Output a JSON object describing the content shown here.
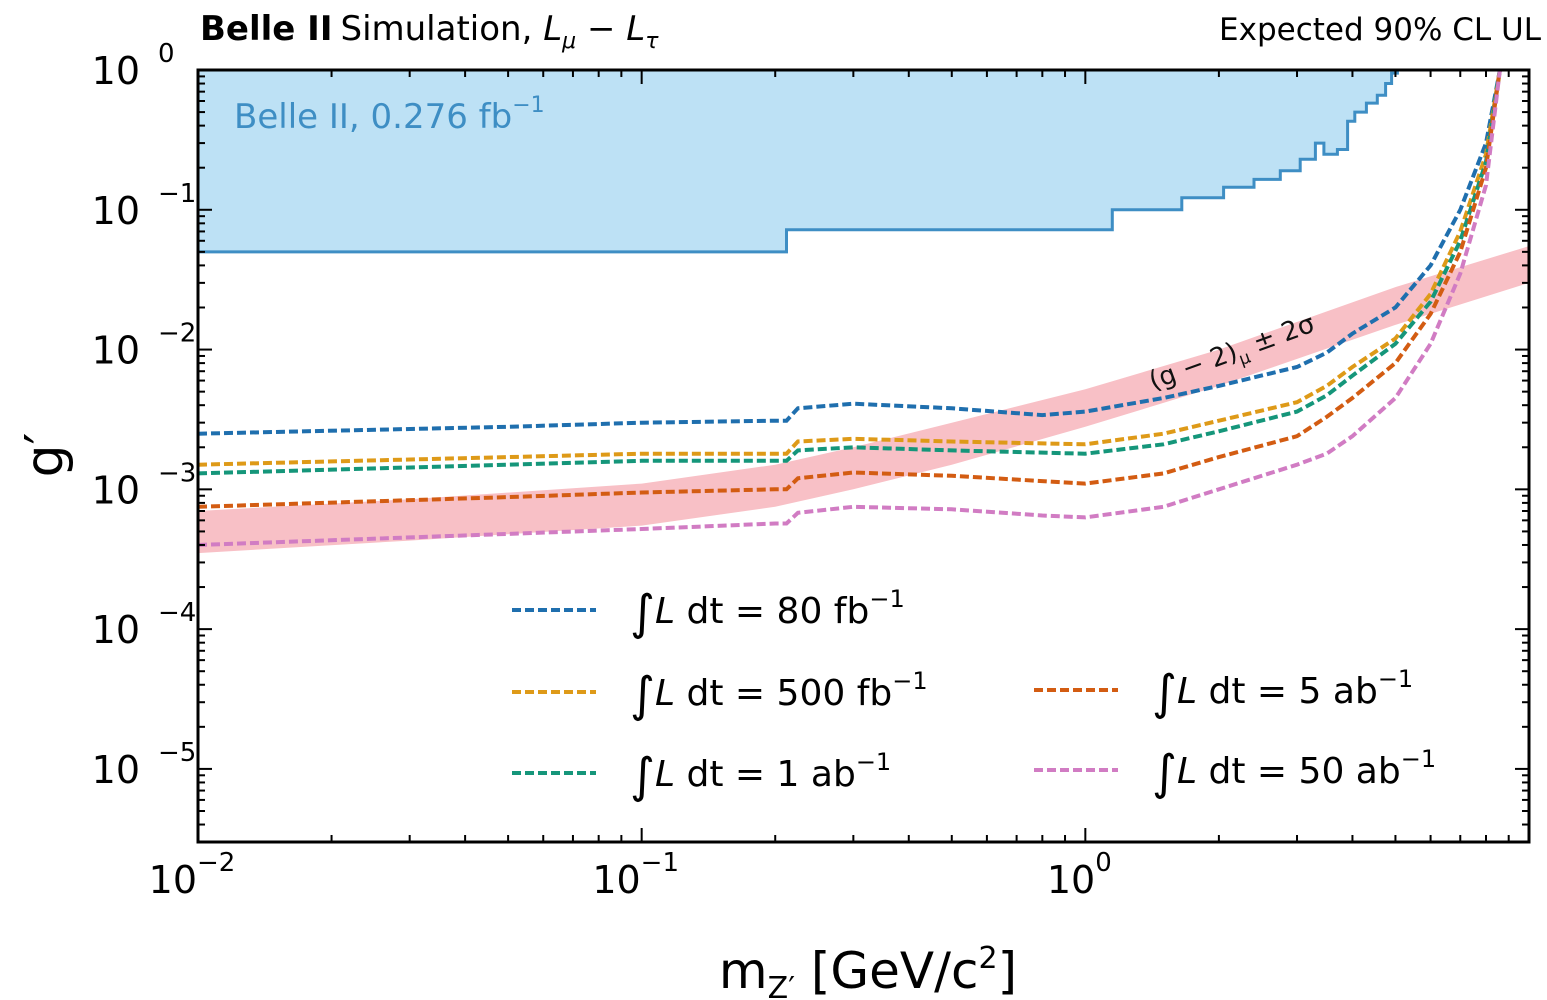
{
  "chart_data": {
    "type": "line",
    "header": {
      "experiment": "Belle II",
      "simulation_text": "Simulation, ",
      "model_a": "L",
      "model_a_sub": "μ",
      "model_op": " − ",
      "model_b": "L",
      "model_b_sub": "τ",
      "right_text": "Expected 90% CL UL"
    },
    "xlabel": {
      "main": "m",
      "sub": "Z′",
      "rest": " [GeV/c",
      "sup": "2",
      "close": "]"
    },
    "ylabel": "g′",
    "xscale": "log",
    "yscale": "log",
    "xlim": [
      0.01,
      10
    ],
    "ylim": [
      3e-06,
      1
    ],
    "x_ticks": [
      {
        "v": 0.01,
        "base": "10",
        "exp": "−2"
      },
      {
        "v": 0.1,
        "base": "10",
        "exp": "−1"
      },
      {
        "v": 1,
        "base": "10",
        "exp": "0"
      }
    ],
    "y_ticks": [
      {
        "v": 1,
        "base": "10",
        "exp": "0"
      },
      {
        "v": 0.1,
        "base": "10",
        "exp": "−1"
      },
      {
        "v": 0.01,
        "base": "10",
        "exp": "−2"
      },
      {
        "v": 0.001,
        "base": "10",
        "exp": "−3"
      },
      {
        "v": 0.0001,
        "base": "10",
        "exp": "−4"
      },
      {
        "v": 1e-05,
        "base": "10",
        "exp": "−5"
      }
    ],
    "excluded_region": {
      "label": "Belle II, 0.276 fb",
      "label_sup": "−1",
      "color_fill": "#bde1f5",
      "color_line": "#3e8ec4",
      "boundary": [
        [
          0.01,
          0.05
        ],
        [
          0.212,
          0.05
        ],
        [
          0.212,
          0.072
        ],
        [
          1.15,
          0.072
        ],
        [
          1.15,
          0.1
        ],
        [
          1.65,
          0.1
        ],
        [
          1.65,
          0.122
        ],
        [
          2.05,
          0.122
        ],
        [
          2.05,
          0.145
        ],
        [
          2.4,
          0.145
        ],
        [
          2.4,
          0.165
        ],
        [
          2.75,
          0.165
        ],
        [
          2.75,
          0.19
        ],
        [
          3.05,
          0.19
        ],
        [
          3.05,
          0.23
        ],
        [
          3.3,
          0.23
        ],
        [
          3.3,
          0.3
        ],
        [
          3.45,
          0.3
        ],
        [
          3.45,
          0.25
        ],
        [
          3.7,
          0.25
        ],
        [
          3.7,
          0.27
        ],
        [
          3.9,
          0.27
        ],
        [
          3.9,
          0.43
        ],
        [
          4.05,
          0.43
        ],
        [
          4.05,
          0.5
        ],
        [
          4.3,
          0.5
        ],
        [
          4.3,
          0.58
        ],
        [
          4.55,
          0.58
        ],
        [
          4.55,
          0.66
        ],
        [
          4.75,
          0.66
        ],
        [
          4.75,
          0.8
        ],
        [
          4.9,
          0.8
        ],
        [
          4.9,
          0.95
        ],
        [
          5.05,
          0.95
        ],
        [
          5.05,
          1.0
        ],
        [
          5.4,
          1.0
        ]
      ]
    },
    "band": {
      "label": "(g − 2)",
      "label_sub": "μ",
      "label_tail": " ± 2σ",
      "color": "#f8c0c6",
      "lower": [
        [
          0.01,
          0.00035
        ],
        [
          0.03,
          0.00043
        ],
        [
          0.1,
          0.00055
        ],
        [
          0.2,
          0.00075
        ],
        [
          0.3,
          0.001
        ],
        [
          0.5,
          0.0015
        ],
        [
          1,
          0.0028
        ],
        [
          2,
          0.0055
        ],
        [
          5,
          0.015
        ],
        [
          10,
          0.03
        ]
      ],
      "upper": [
        [
          0.01,
          0.0007
        ],
        [
          0.03,
          0.00085
        ],
        [
          0.1,
          0.0011
        ],
        [
          0.2,
          0.0015
        ],
        [
          0.3,
          0.002
        ],
        [
          0.5,
          0.003
        ],
        [
          1,
          0.0052
        ],
        [
          2,
          0.01
        ],
        [
          5,
          0.028
        ],
        [
          10,
          0.055
        ]
      ]
    },
    "series": [
      {
        "name_int": "∫",
        "name_l": "L",
        "name_mid": " dt  =  80 fb",
        "name_sup": "−1",
        "color": "#1f6fae",
        "points": [
          [
            0.01,
            0.0025
          ],
          [
            0.05,
            0.0028
          ],
          [
            0.1,
            0.003
          ],
          [
            0.2,
            0.0031
          ],
          [
            0.212,
            0.0031
          ],
          [
            0.225,
            0.0038
          ],
          [
            0.3,
            0.0041
          ],
          [
            0.5,
            0.0038
          ],
          [
            0.8,
            0.0034
          ],
          [
            1.0,
            0.0036
          ],
          [
            1.5,
            0.0045
          ],
          [
            2.0,
            0.0055
          ],
          [
            3.0,
            0.0075
          ],
          [
            3.5,
            0.0095
          ],
          [
            4.0,
            0.013
          ],
          [
            5.0,
            0.02
          ],
          [
            6.0,
            0.04
          ],
          [
            7.0,
            0.1
          ],
          [
            8.0,
            0.3
          ],
          [
            8.6,
            1.0
          ]
        ]
      },
      {
        "name_int": "∫",
        "name_l": "L",
        "name_mid": " dt  =  500 fb",
        "name_sup": "−1",
        "color": "#de9a18",
        "points": [
          [
            0.01,
            0.0015
          ],
          [
            0.05,
            0.0017
          ],
          [
            0.1,
            0.0018
          ],
          [
            0.2,
            0.0018
          ],
          [
            0.212,
            0.0018
          ],
          [
            0.225,
            0.0022
          ],
          [
            0.3,
            0.0023
          ],
          [
            0.5,
            0.0022
          ],
          [
            1.0,
            0.0021
          ],
          [
            1.5,
            0.0025
          ],
          [
            2.0,
            0.0031
          ],
          [
            3.0,
            0.0042
          ],
          [
            3.5,
            0.0055
          ],
          [
            4.0,
            0.0075
          ],
          [
            5.0,
            0.012
          ],
          [
            6.0,
            0.025
          ],
          [
            7.0,
            0.07
          ],
          [
            8.0,
            0.25
          ],
          [
            8.6,
            1.0
          ]
        ]
      },
      {
        "name_int": "∫",
        "name_l": "L",
        "name_mid": " dt  =  1 ab",
        "name_sup": "−1",
        "color": "#15967a",
        "points": [
          [
            0.01,
            0.0013
          ],
          [
            0.05,
            0.0015
          ],
          [
            0.1,
            0.0016
          ],
          [
            0.2,
            0.0016
          ],
          [
            0.212,
            0.0016
          ],
          [
            0.225,
            0.0019
          ],
          [
            0.3,
            0.002
          ],
          [
            0.5,
            0.0019
          ],
          [
            1.0,
            0.0018
          ],
          [
            1.5,
            0.0021
          ],
          [
            2.0,
            0.0026
          ],
          [
            3.0,
            0.0036
          ],
          [
            3.5,
            0.0047
          ],
          [
            4.0,
            0.0065
          ],
          [
            5.0,
            0.011
          ],
          [
            6.0,
            0.022
          ],
          [
            7.0,
            0.06
          ],
          [
            8.0,
            0.22
          ],
          [
            8.6,
            1.0
          ]
        ]
      },
      {
        "name_int": "∫",
        "name_l": "L",
        "name_mid": " dt  =  5 ab",
        "name_sup": "−1",
        "color": "#d35c12",
        "points": [
          [
            0.01,
            0.00075
          ],
          [
            0.05,
            0.00088
          ],
          [
            0.1,
            0.00095
          ],
          [
            0.2,
            0.001
          ],
          [
            0.212,
            0.001
          ],
          [
            0.225,
            0.0012
          ],
          [
            0.3,
            0.00132
          ],
          [
            0.5,
            0.00125
          ],
          [
            1.0,
            0.0011
          ],
          [
            1.5,
            0.0013
          ],
          [
            2.0,
            0.0017
          ],
          [
            3.0,
            0.0024
          ],
          [
            3.5,
            0.0033
          ],
          [
            4.0,
            0.0045
          ],
          [
            5.0,
            0.008
          ],
          [
            6.0,
            0.018
          ],
          [
            7.0,
            0.05
          ],
          [
            8.0,
            0.2
          ],
          [
            8.6,
            1.0
          ]
        ]
      },
      {
        "name_int": "∫",
        "name_l": "L",
        "name_mid": " dt  =  50 ab",
        "name_sup": "−1",
        "color": "#d17cc3",
        "points": [
          [
            0.01,
            0.0004
          ],
          [
            0.05,
            0.00048
          ],
          [
            0.1,
            0.00052
          ],
          [
            0.2,
            0.00057
          ],
          [
            0.212,
            0.00057
          ],
          [
            0.225,
            0.00068
          ],
          [
            0.3,
            0.00075
          ],
          [
            0.5,
            0.00072
          ],
          [
            0.8,
            0.00065
          ],
          [
            1.0,
            0.00063
          ],
          [
            1.5,
            0.00075
          ],
          [
            2.0,
            0.001
          ],
          [
            3.0,
            0.0015
          ],
          [
            3.5,
            0.0018
          ],
          [
            4.0,
            0.0024
          ],
          [
            5.0,
            0.0045
          ],
          [
            6.0,
            0.011
          ],
          [
            7.0,
            0.035
          ],
          [
            8.0,
            0.15
          ],
          [
            8.6,
            1.0
          ]
        ]
      }
    ],
    "legend": {
      "position": "lower-center",
      "columns": 2
    }
  }
}
